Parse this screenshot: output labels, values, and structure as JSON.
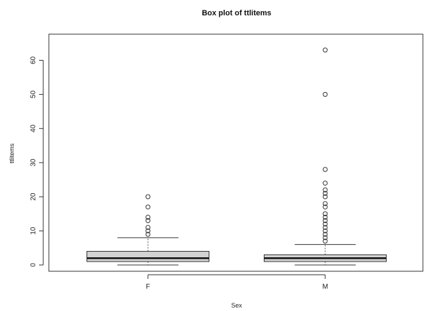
{
  "chart_data": {
    "type": "boxplot",
    "title": "Box plot of ttlitems",
    "xlabel": "Sex",
    "ylabel": "ttlitems",
    "ylim": [
      0,
      65
    ],
    "yticks": [
      0,
      10,
      20,
      30,
      40,
      50,
      60
    ],
    "categories": [
      "F",
      "M"
    ],
    "box_color": "#d3d3d3",
    "boxes": [
      {
        "name": "F",
        "whisker_low": 0,
        "q1": 1,
        "median": 2,
        "q3": 4,
        "whisker_high": 8,
        "outliers": [
          9,
          10,
          11,
          13,
          14,
          17,
          20
        ]
      },
      {
        "name": "M",
        "whisker_low": 0,
        "q1": 1,
        "median": 2,
        "q3": 3,
        "whisker_high": 6,
        "outliers": [
          7,
          8,
          9,
          10,
          11,
          12,
          13,
          14,
          15,
          17,
          18,
          20,
          21,
          22,
          24,
          28,
          50,
          63
        ]
      }
    ]
  }
}
